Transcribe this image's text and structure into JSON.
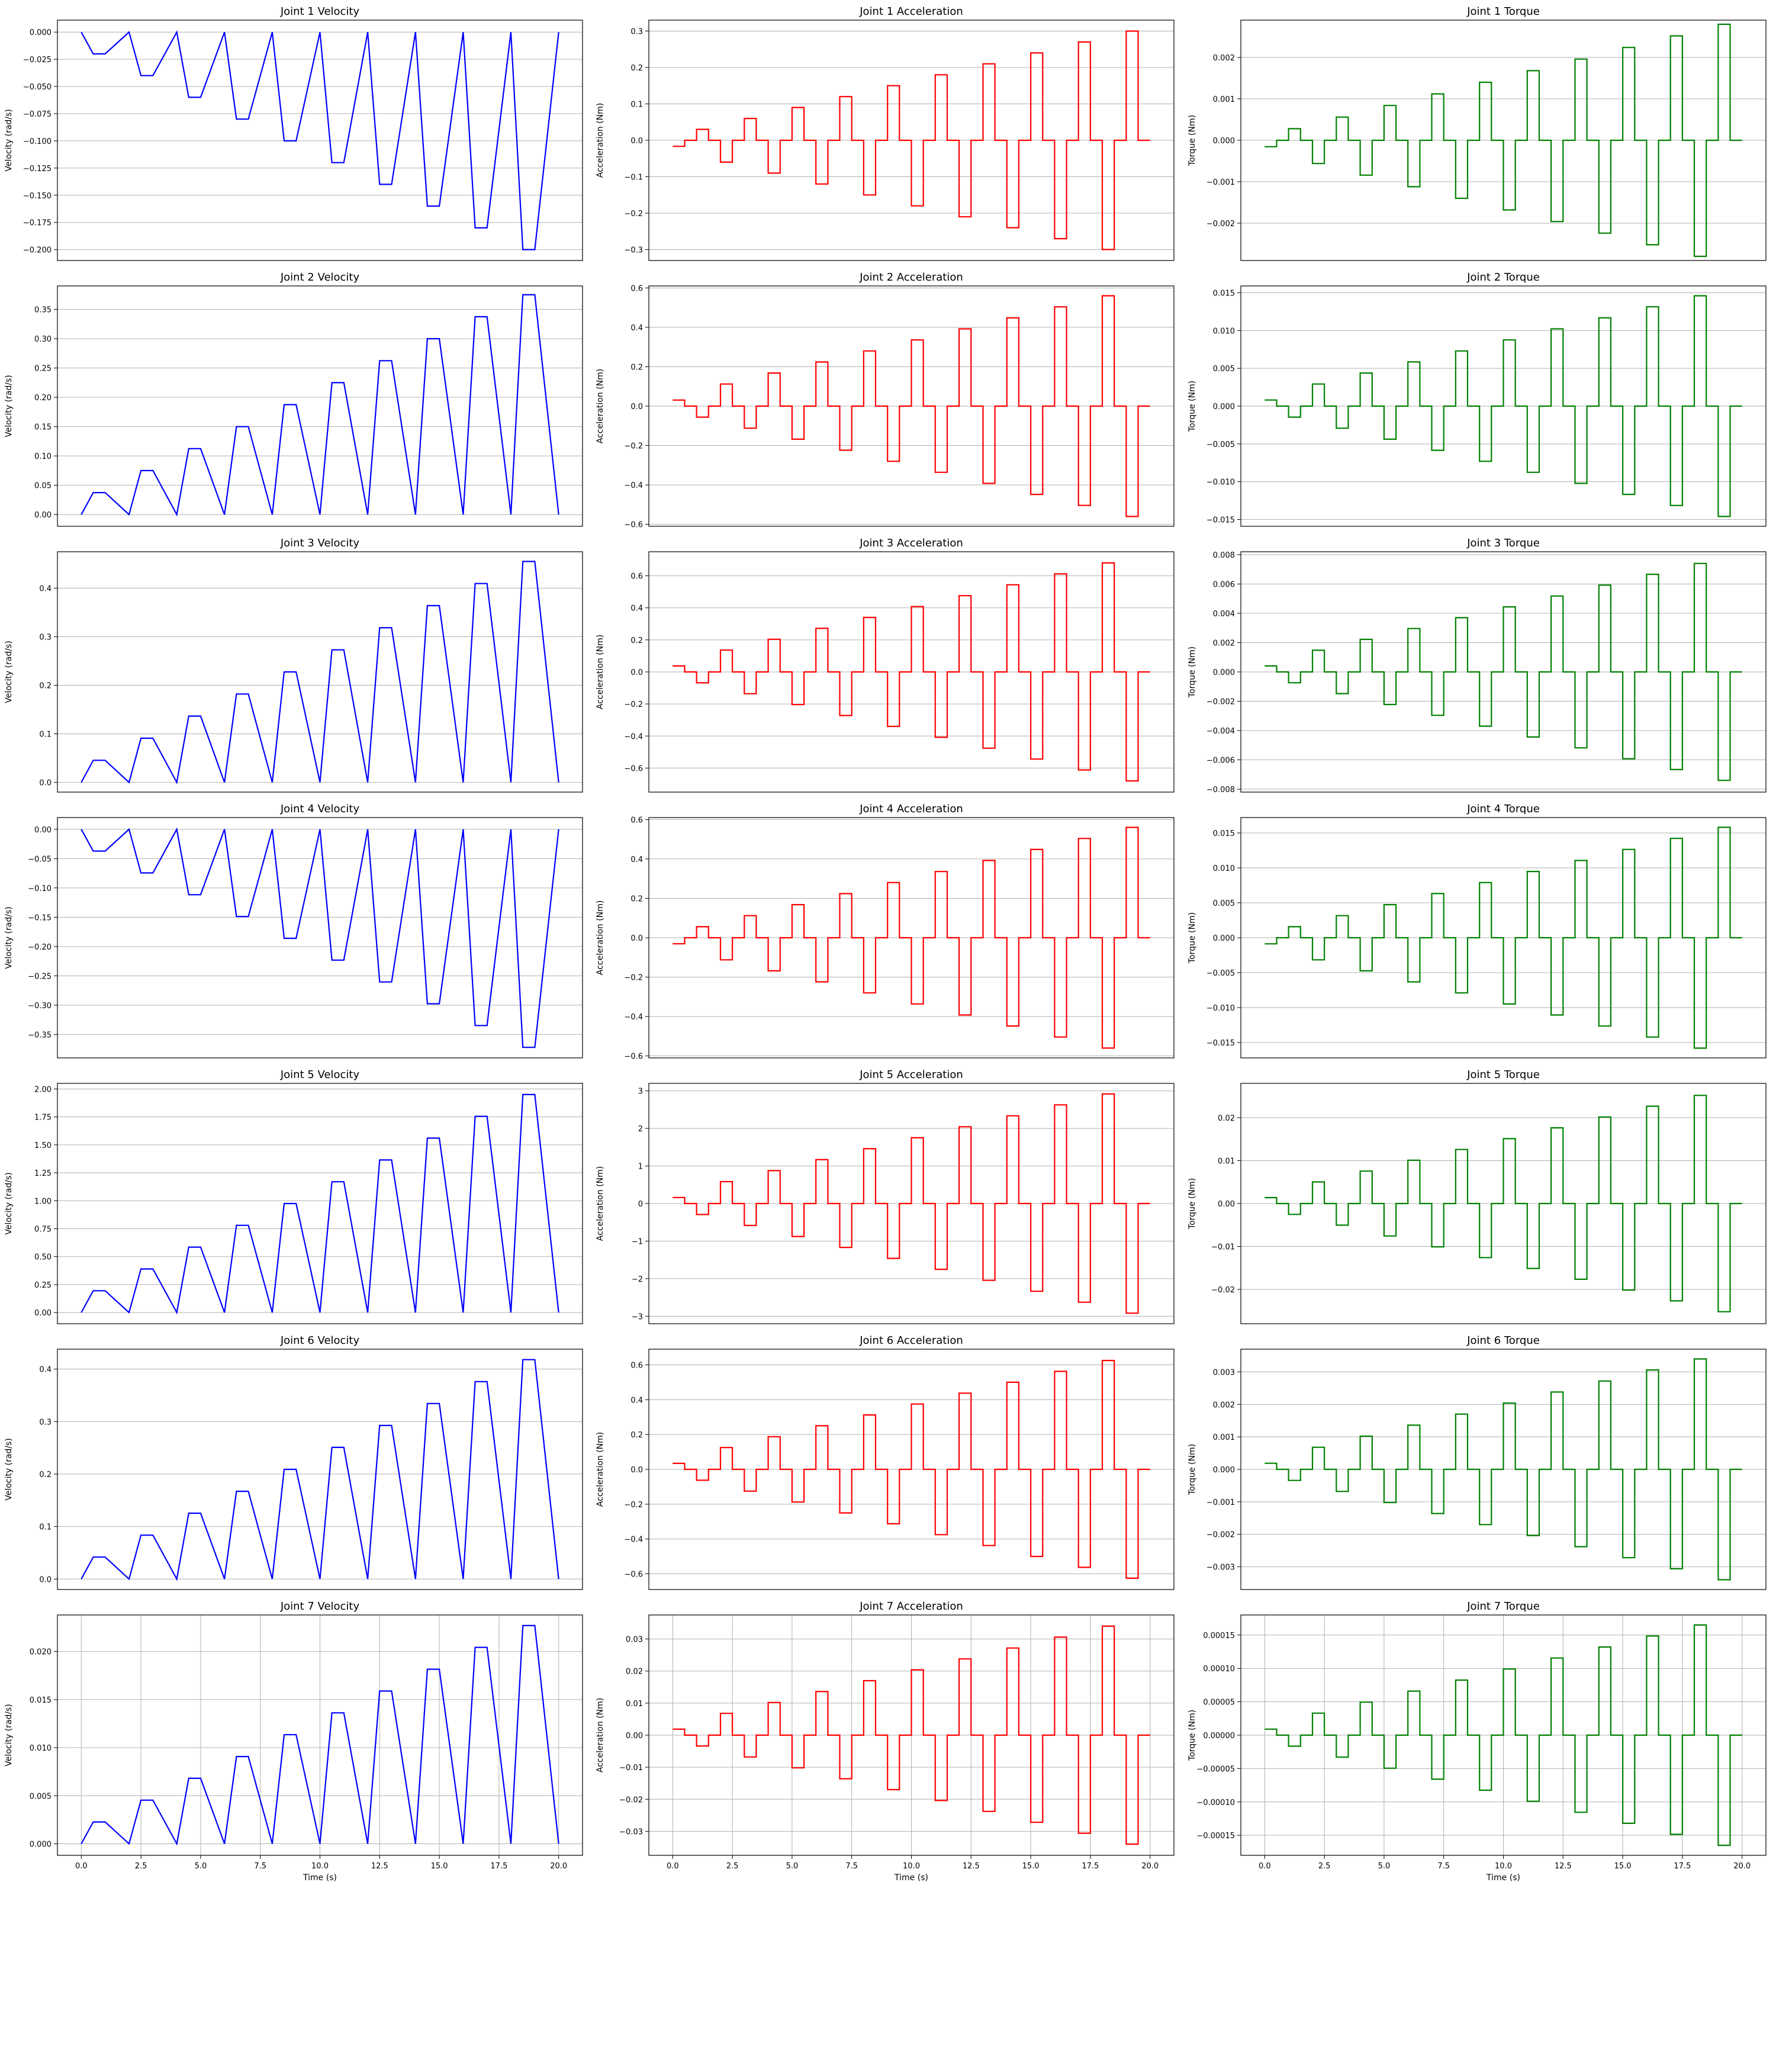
{
  "figure": {
    "x_label": "Time (s)",
    "x_ticks": [
      "0.0",
      "2.5",
      "5.0",
      "7.5",
      "10.0",
      "12.5",
      "15.0",
      "17.5",
      "20.0"
    ],
    "x_range": [
      -1,
      21
    ],
    "colors": {
      "velocity": "#0000ff",
      "acceleration": "#ff0000",
      "torque": "#008000"
    }
  },
  "chart_data": [
    {
      "type": "line",
      "joint": 1,
      "kind": "velocity",
      "title": "Joint 1 Velocity",
      "ylabel": "Velocity (rad/s)",
      "amplitude": -0.2,
      "ylim": [
        -0.21,
        0.011
      ],
      "y_ticks": [
        0.0,
        -0.025,
        -0.05,
        -0.075,
        -0.1,
        -0.125,
        -0.15,
        -0.175,
        -0.2
      ],
      "y_tick_labels": [
        "0.000",
        "−0.025",
        "−0.050",
        "−0.075",
        "−0.100",
        "−0.125",
        "−0.150",
        "−0.175",
        "−0.200"
      ],
      "y_grid": true,
      "x_grid": false
    },
    {
      "type": "line",
      "joint": 1,
      "kind": "acceleration",
      "title": "Joint 1 Acceleration",
      "ylabel": "Acceleration (Nm)",
      "amplitude": -0.3,
      "ylim": [
        -0.33,
        0.33
      ],
      "y_ticks": [
        -0.3,
        -0.2,
        -0.1,
        0.0,
        0.1,
        0.2,
        0.3
      ],
      "y_tick_labels": [
        "−0.3",
        "−0.2",
        "−0.1",
        "0.0",
        "0.1",
        "0.2",
        "0.3"
      ],
      "y_grid": true,
      "x_grid": false
    },
    {
      "type": "line",
      "joint": 1,
      "kind": "torque",
      "title": "Joint 1 Torque",
      "ylabel": "Torque (Nm)",
      "amplitude": -0.0028,
      "ylim": [
        -0.0029,
        0.0029
      ],
      "y_ticks": [
        -0.002,
        -0.001,
        0.0,
        0.001,
        0.002
      ],
      "y_tick_labels": [
        "−0.002",
        "−0.001",
        "0.000",
        "0.001",
        "0.002"
      ],
      "y_grid": true,
      "x_grid": false
    },
    {
      "type": "line",
      "joint": 2,
      "kind": "velocity",
      "title": "Joint 2 Velocity",
      "ylabel": "Velocity (rad/s)",
      "amplitude": 0.375,
      "ylim": [
        -0.02,
        0.39
      ],
      "y_ticks": [
        0.0,
        0.05,
        0.1,
        0.15,
        0.2,
        0.25,
        0.3,
        0.35
      ],
      "y_tick_labels": [
        "0.00",
        "0.05",
        "0.10",
        "0.15",
        "0.20",
        "0.25",
        "0.30",
        "0.35"
      ],
      "y_grid": true,
      "x_grid": false
    },
    {
      "type": "line",
      "joint": 2,
      "kind": "acceleration",
      "title": "Joint 2 Acceleration",
      "ylabel": "Acceleration (Nm)",
      "amplitude": 0.56,
      "ylim": [
        -0.61,
        0.61
      ],
      "y_ticks": [
        -0.6,
        -0.4,
        -0.2,
        0.0,
        0.2,
        0.4,
        0.6
      ],
      "y_tick_labels": [
        "−0.6",
        "−0.4",
        "−0.2",
        "0.0",
        "0.2",
        "0.4",
        "0.6"
      ],
      "y_grid": true,
      "x_grid": false
    },
    {
      "type": "line",
      "joint": 2,
      "kind": "torque",
      "title": "Joint 2 Torque",
      "ylabel": "Torque (Nm)",
      "amplitude": 0.0146,
      "ylim": [
        -0.0159,
        0.0159
      ],
      "y_ticks": [
        -0.015,
        -0.01,
        -0.005,
        0.0,
        0.005,
        0.01,
        0.015
      ],
      "y_tick_labels": [
        "−0.015",
        "−0.010",
        "−0.005",
        "0.000",
        "0.005",
        "0.010",
        "0.015"
      ],
      "y_grid": true,
      "x_grid": false
    },
    {
      "type": "line",
      "joint": 3,
      "kind": "velocity",
      "title": "Joint 3 Velocity",
      "ylabel": "Velocity (rad/s)",
      "amplitude": 0.455,
      "ylim": [
        -0.02,
        0.475
      ],
      "y_ticks": [
        0.0,
        0.1,
        0.2,
        0.3,
        0.4
      ],
      "y_tick_labels": [
        "0.0",
        "0.1",
        "0.2",
        "0.3",
        "0.4"
      ],
      "y_grid": true,
      "x_grid": false
    },
    {
      "type": "line",
      "joint": 3,
      "kind": "acceleration",
      "title": "Joint 3 Acceleration",
      "ylabel": "Acceleration (Nm)",
      "amplitude": 0.68,
      "ylim": [
        -0.75,
        0.75
      ],
      "y_ticks": [
        -0.6,
        -0.4,
        -0.2,
        0.0,
        0.2,
        0.4,
        0.6
      ],
      "y_tick_labels": [
        "−0.6",
        "−0.4",
        "−0.2",
        "0.0",
        "0.2",
        "0.4",
        "0.6"
      ],
      "y_grid": true,
      "x_grid": false
    },
    {
      "type": "line",
      "joint": 3,
      "kind": "torque",
      "title": "Joint 3 Torque",
      "ylabel": "Torque (Nm)",
      "amplitude": 0.0074,
      "ylim": [
        -0.0082,
        0.0082
      ],
      "y_ticks": [
        -0.008,
        -0.006,
        -0.004,
        -0.002,
        0.0,
        0.002,
        0.004,
        0.006,
        0.008
      ],
      "y_tick_labels": [
        "−0.008",
        "−0.006",
        "−0.004",
        "−0.002",
        "0.000",
        "0.002",
        "0.004",
        "0.006",
        "0.008"
      ],
      "y_grid": true,
      "x_grid": false
    },
    {
      "type": "line",
      "joint": 4,
      "kind": "velocity",
      "title": "Joint 4 Velocity",
      "ylabel": "Velocity (rad/s)",
      "amplitude": -0.372,
      "ylim": [
        -0.39,
        0.02
      ],
      "y_ticks": [
        0.0,
        -0.05,
        -0.1,
        -0.15,
        -0.2,
        -0.25,
        -0.3,
        -0.35
      ],
      "y_tick_labels": [
        "0.00",
        "−0.05",
        "−0.10",
        "−0.15",
        "−0.20",
        "−0.25",
        "−0.30",
        "−0.35"
      ],
      "y_grid": true,
      "x_grid": false
    },
    {
      "type": "line",
      "joint": 4,
      "kind": "acceleration",
      "title": "Joint 4 Acceleration",
      "ylabel": "Acceleration (Nm)",
      "amplitude": -0.56,
      "ylim": [
        -0.61,
        0.61
      ],
      "y_ticks": [
        -0.6,
        -0.4,
        -0.2,
        0.0,
        0.2,
        0.4,
        0.6
      ],
      "y_tick_labels": [
        "−0.6",
        "−0.4",
        "−0.2",
        "0.0",
        "0.2",
        "0.4",
        "0.6"
      ],
      "y_grid": true,
      "x_grid": false
    },
    {
      "type": "line",
      "joint": 4,
      "kind": "torque",
      "title": "Joint 4 Torque",
      "ylabel": "Torque (Nm)",
      "amplitude": -0.0158,
      "ylim": [
        -0.0172,
        0.0172
      ],
      "y_ticks": [
        -0.015,
        -0.01,
        -0.005,
        0.0,
        0.005,
        0.01,
        0.015
      ],
      "y_tick_labels": [
        "−0.015",
        "−0.010",
        "−0.005",
        "0.000",
        "0.005",
        "0.010",
        "0.015"
      ],
      "y_grid": true,
      "x_grid": false
    },
    {
      "type": "line",
      "joint": 5,
      "kind": "velocity",
      "title": "Joint 5 Velocity",
      "ylabel": "Velocity (rad/s)",
      "amplitude": 1.95,
      "ylim": [
        -0.1,
        2.05
      ],
      "y_ticks": [
        0.0,
        0.25,
        0.5,
        0.75,
        1.0,
        1.25,
        1.5,
        1.75,
        2.0
      ],
      "y_tick_labels": [
        "0.00",
        "0.25",
        "0.50",
        "0.75",
        "1.00",
        "1.25",
        "1.50",
        "1.75",
        "2.00"
      ],
      "y_grid": true,
      "x_grid": false
    },
    {
      "type": "line",
      "joint": 5,
      "kind": "acceleration",
      "title": "Joint 5 Acceleration",
      "ylabel": "Acceleration (Nm)",
      "amplitude": 2.92,
      "ylim": [
        -3.2,
        3.2
      ],
      "y_ticks": [
        -3,
        -2,
        -1,
        0,
        1,
        2,
        3
      ],
      "y_tick_labels": [
        "−3",
        "−2",
        "−1",
        "0",
        "1",
        "2",
        "3"
      ],
      "y_grid": true,
      "x_grid": false
    },
    {
      "type": "line",
      "joint": 5,
      "kind": "torque",
      "title": "Joint 5 Torque",
      "ylabel": "Torque (Nm)",
      "amplitude": 0.0252,
      "ylim": [
        -0.028,
        0.028
      ],
      "y_ticks": [
        -0.02,
        -0.01,
        0.0,
        0.01,
        0.02
      ],
      "y_tick_labels": [
        "−0.02",
        "−0.01",
        "0.00",
        "0.01",
        "0.02"
      ],
      "y_grid": true,
      "x_grid": false
    },
    {
      "type": "line",
      "joint": 6,
      "kind": "velocity",
      "title": "Joint 6 Velocity",
      "ylabel": "Velocity (rad/s)",
      "amplitude": 0.418,
      "ylim": [
        -0.02,
        0.438
      ],
      "y_ticks": [
        0.0,
        0.1,
        0.2,
        0.3,
        0.4
      ],
      "y_tick_labels": [
        "0.0",
        "0.1",
        "0.2",
        "0.3",
        "0.4"
      ],
      "y_grid": true,
      "x_grid": false
    },
    {
      "type": "line",
      "joint": 6,
      "kind": "acceleration",
      "title": "Joint 6 Acceleration",
      "ylabel": "Acceleration (Nm)",
      "amplitude": 0.625,
      "ylim": [
        -0.69,
        0.69
      ],
      "y_ticks": [
        -0.6,
        -0.4,
        -0.2,
        0.0,
        0.2,
        0.4,
        0.6
      ],
      "y_tick_labels": [
        "−0.6",
        "−0.4",
        "−0.2",
        "0.0",
        "0.2",
        "0.4",
        "0.6"
      ],
      "y_grid": true,
      "x_grid": false
    },
    {
      "type": "line",
      "joint": 6,
      "kind": "torque",
      "title": "Joint 6 Torque",
      "ylabel": "Torque (Nm)",
      "amplitude": 0.0034,
      "ylim": [
        -0.0037,
        0.0037
      ],
      "y_ticks": [
        -0.003,
        -0.002,
        -0.001,
        0.0,
        0.001,
        0.002,
        0.003
      ],
      "y_tick_labels": [
        "−0.003",
        "−0.002",
        "−0.001",
        "0.000",
        "0.001",
        "0.002",
        "0.003"
      ],
      "y_grid": true,
      "x_grid": false
    },
    {
      "type": "line",
      "joint": 7,
      "kind": "velocity",
      "title": "Joint 7 Velocity",
      "ylabel": "Velocity (rad/s)",
      "amplitude": 0.0227,
      "ylim": [
        -0.0012,
        0.0238
      ],
      "y_ticks": [
        0.0,
        0.005,
        0.01,
        0.015,
        0.02
      ],
      "y_tick_labels": [
        "0.000",
        "0.005",
        "0.010",
        "0.015",
        "0.020"
      ],
      "y_grid": true,
      "x_grid": true
    },
    {
      "type": "line",
      "joint": 7,
      "kind": "acceleration",
      "title": "Joint 7 Acceleration",
      "ylabel": "Acceleration (Nm)",
      "amplitude": 0.034,
      "ylim": [
        -0.0375,
        0.0375
      ],
      "y_ticks": [
        -0.03,
        -0.02,
        -0.01,
        0.0,
        0.01,
        0.02,
        0.03
      ],
      "y_tick_labels": [
        "−0.03",
        "−0.02",
        "−0.01",
        "0.00",
        "0.01",
        "0.02",
        "0.03"
      ],
      "y_grid": true,
      "x_grid": true
    },
    {
      "type": "line",
      "joint": 7,
      "kind": "torque",
      "title": "Joint 7 Torque",
      "ylabel": "Torque (Nm)",
      "amplitude": 0.000165,
      "ylim": [
        -0.00018,
        0.00018
      ],
      "y_ticks": [
        -0.00015,
        -0.0001,
        -5e-05,
        0.0,
        5e-05,
        0.0001,
        0.00015
      ],
      "y_tick_labels": [
        "−0.00015",
        "−0.00010",
        "−0.00005",
        "0.00000",
        "0.00005",
        "0.00010",
        "0.00015"
      ],
      "y_grid": true,
      "x_grid": true
    }
  ]
}
